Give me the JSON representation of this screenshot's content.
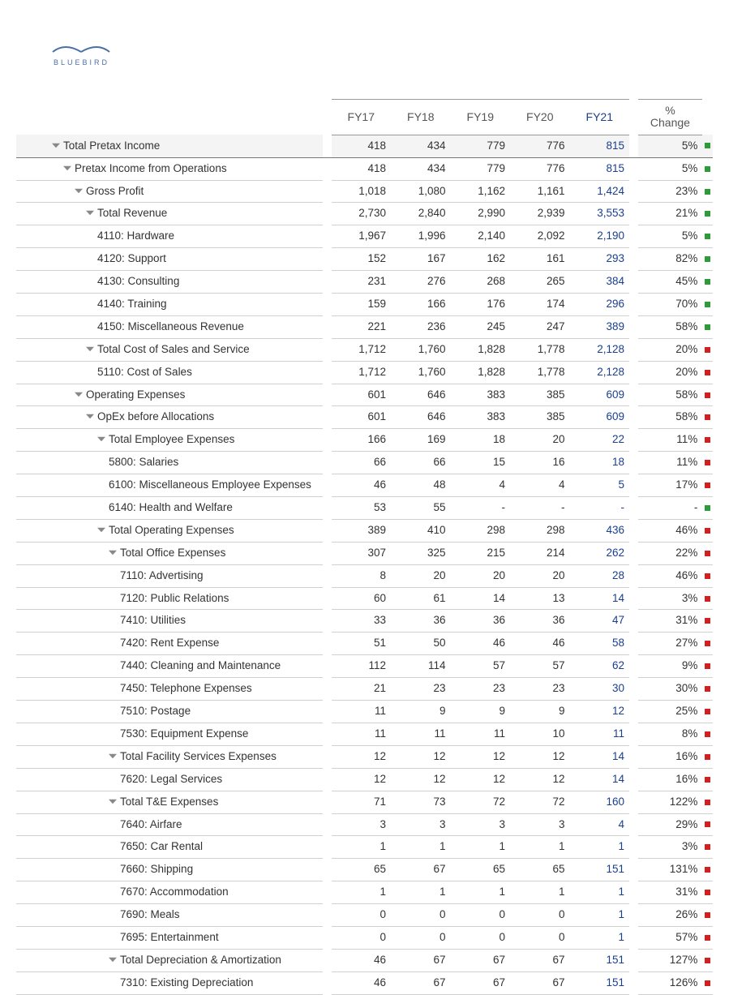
{
  "brand": {
    "name": "BLUEBIRD",
    "wave_color": "#4a6fa5"
  },
  "columns": {
    "fy17": "FY17",
    "fy18": "FY18",
    "fy19": "FY19",
    "fy20": "FY20",
    "fy21": "FY21",
    "change_top": "%",
    "change_bottom": "Change"
  },
  "indicator_colors": {
    "up": "#2e9b3a",
    "down": "#d22020"
  },
  "value_colors": {
    "normal": "#333333",
    "fy21": "#1a3f8f"
  },
  "rows": [
    {
      "label": "Total Pretax Income",
      "indent": 0,
      "tri": true,
      "shaded": true,
      "strong": true,
      "v": [
        "418",
        "434",
        "779",
        "776",
        "815"
      ],
      "chg": "5%",
      "ind": "up"
    },
    {
      "label": "Pretax Income from Operations",
      "indent": 1,
      "tri": true,
      "v": [
        "418",
        "434",
        "779",
        "776",
        "815"
      ],
      "chg": "5%",
      "ind": "up"
    },
    {
      "label": "Gross Profit",
      "indent": 2,
      "tri": true,
      "v": [
        "1,018",
        "1,080",
        "1,162",
        "1,161",
        "1,424"
      ],
      "chg": "23%",
      "ind": "up"
    },
    {
      "label": "Total Revenue",
      "indent": 3,
      "tri": true,
      "v": [
        "2,730",
        "2,840",
        "2,990",
        "2,939",
        "3,553"
      ],
      "chg": "21%",
      "ind": "up"
    },
    {
      "label": "4110: Hardware",
      "indent": 4,
      "v": [
        "1,967",
        "1,996",
        "2,140",
        "2,092",
        "2,190"
      ],
      "chg": "5%",
      "ind": "up"
    },
    {
      "label": "4120: Support",
      "indent": 4,
      "v": [
        "152",
        "167",
        "162",
        "161",
        "293"
      ],
      "chg": "82%",
      "ind": "up"
    },
    {
      "label": "4130: Consulting",
      "indent": 4,
      "v": [
        "231",
        "276",
        "268",
        "265",
        "384"
      ],
      "chg": "45%",
      "ind": "up"
    },
    {
      "label": "4140: Training",
      "indent": 4,
      "v": [
        "159",
        "166",
        "176",
        "174",
        "296"
      ],
      "chg": "70%",
      "ind": "up"
    },
    {
      "label": "4150: Miscellaneous Revenue",
      "indent": 4,
      "v": [
        "221",
        "236",
        "245",
        "247",
        "389"
      ],
      "chg": "58%",
      "ind": "up"
    },
    {
      "label": "Total Cost of Sales and Service",
      "indent": 3,
      "tri": true,
      "v": [
        "1,712",
        "1,760",
        "1,828",
        "1,778",
        "2,128"
      ],
      "chg": "20%",
      "ind": "down"
    },
    {
      "label": "5110: Cost of Sales",
      "indent": 4,
      "v": [
        "1,712",
        "1,760",
        "1,828",
        "1,778",
        "2,128"
      ],
      "chg": "20%",
      "ind": "down"
    },
    {
      "label": "Operating Expenses",
      "indent": 2,
      "tri": true,
      "v": [
        "601",
        "646",
        "383",
        "385",
        "609"
      ],
      "chg": "58%",
      "ind": "down"
    },
    {
      "label": "OpEx before Allocations",
      "indent": 3,
      "tri": true,
      "v": [
        "601",
        "646",
        "383",
        "385",
        "609"
      ],
      "chg": "58%",
      "ind": "down"
    },
    {
      "label": "Total Employee Expenses",
      "indent": 4,
      "tri": true,
      "v": [
        "166",
        "169",
        "18",
        "20",
        "22"
      ],
      "chg": "11%",
      "ind": "down"
    },
    {
      "label": "5800: Salaries",
      "indent": 5,
      "v": [
        "66",
        "66",
        "15",
        "16",
        "18"
      ],
      "chg": "11%",
      "ind": "down"
    },
    {
      "label": "6100: Miscellaneous Employee Expenses",
      "indent": 5,
      "v": [
        "46",
        "48",
        "4",
        "4",
        "5"
      ],
      "chg": "17%",
      "ind": "down"
    },
    {
      "label": "6140: Health and Welfare",
      "indent": 5,
      "v": [
        "53",
        "55",
        "-",
        "-",
        "-"
      ],
      "chg": "-",
      "ind": "up"
    },
    {
      "label": "Total Operating Expenses",
      "indent": 4,
      "tri": true,
      "v": [
        "389",
        "410",
        "298",
        "298",
        "436"
      ],
      "chg": "46%",
      "ind": "down"
    },
    {
      "label": "Total Office Expenses",
      "indent": 5,
      "tri": true,
      "v": [
        "307",
        "325",
        "215",
        "214",
        "262"
      ],
      "chg": "22%",
      "ind": "down"
    },
    {
      "label": "7110: Advertising",
      "indent": 6,
      "v": [
        "8",
        "20",
        "20",
        "20",
        "28"
      ],
      "chg": "46%",
      "ind": "down"
    },
    {
      "label": "7120: Public Relations",
      "indent": 6,
      "v": [
        "60",
        "61",
        "14",
        "13",
        "14"
      ],
      "chg": "3%",
      "ind": "down"
    },
    {
      "label": "7410: Utilities",
      "indent": 6,
      "v": [
        "33",
        "36",
        "36",
        "36",
        "47"
      ],
      "chg": "31%",
      "ind": "down"
    },
    {
      "label": "7420: Rent Expense",
      "indent": 6,
      "v": [
        "51",
        "50",
        "46",
        "46",
        "58"
      ],
      "chg": "27%",
      "ind": "down"
    },
    {
      "label": "7440: Cleaning and Maintenance",
      "indent": 6,
      "v": [
        "112",
        "114",
        "57",
        "57",
        "62"
      ],
      "chg": "9%",
      "ind": "down"
    },
    {
      "label": "7450: Telephone Expenses",
      "indent": 6,
      "v": [
        "21",
        "23",
        "23",
        "23",
        "30"
      ],
      "chg": "30%",
      "ind": "down"
    },
    {
      "label": "7510: Postage",
      "indent": 6,
      "v": [
        "11",
        "9",
        "9",
        "9",
        "12"
      ],
      "chg": "25%",
      "ind": "down"
    },
    {
      "label": "7530: Equipment Expense",
      "indent": 6,
      "v": [
        "11",
        "11",
        "11",
        "10",
        "11"
      ],
      "chg": "8%",
      "ind": "down"
    },
    {
      "label": "Total Facility Services Expenses",
      "indent": 5,
      "tri": true,
      "v": [
        "12",
        "12",
        "12",
        "12",
        "14"
      ],
      "chg": "16%",
      "ind": "down"
    },
    {
      "label": "7620: Legal Services",
      "indent": 6,
      "v": [
        "12",
        "12",
        "12",
        "12",
        "14"
      ],
      "chg": "16%",
      "ind": "down"
    },
    {
      "label": "Total T&E Expenses",
      "indent": 5,
      "tri": true,
      "v": [
        "71",
        "73",
        "72",
        "72",
        "160"
      ],
      "chg": "122%",
      "ind": "down"
    },
    {
      "label": "7640: Airfare",
      "indent": 6,
      "v": [
        "3",
        "3",
        "3",
        "3",
        "4"
      ],
      "chg": "29%",
      "ind": "down"
    },
    {
      "label": "7650: Car Rental",
      "indent": 6,
      "v": [
        "1",
        "1",
        "1",
        "1",
        "1"
      ],
      "chg": "3%",
      "ind": "down"
    },
    {
      "label": "7660: Shipping",
      "indent": 6,
      "v": [
        "65",
        "67",
        "65",
        "65",
        "151"
      ],
      "chg": "131%",
      "ind": "down"
    },
    {
      "label": "7670: Accommodation",
      "indent": 6,
      "v": [
        "1",
        "1",
        "1",
        "1",
        "1"
      ],
      "chg": "31%",
      "ind": "down"
    },
    {
      "label": "7690: Meals",
      "indent": 6,
      "v": [
        "0",
        "0",
        "0",
        "0",
        "1"
      ],
      "chg": "26%",
      "ind": "down"
    },
    {
      "label": "7695: Entertainment",
      "indent": 6,
      "v": [
        "0",
        "0",
        "0",
        "0",
        "1"
      ],
      "chg": "57%",
      "ind": "down"
    },
    {
      "label": "Total Depreciation & Amortization",
      "indent": 5,
      "tri": true,
      "v": [
        "46",
        "67",
        "67",
        "67",
        "151"
      ],
      "chg": "127%",
      "ind": "down"
    },
    {
      "label": "7310: Existing Depreciation",
      "indent": 6,
      "v": [
        "46",
        "67",
        "67",
        "67",
        "151"
      ],
      "chg": "126%",
      "ind": "down"
    }
  ]
}
